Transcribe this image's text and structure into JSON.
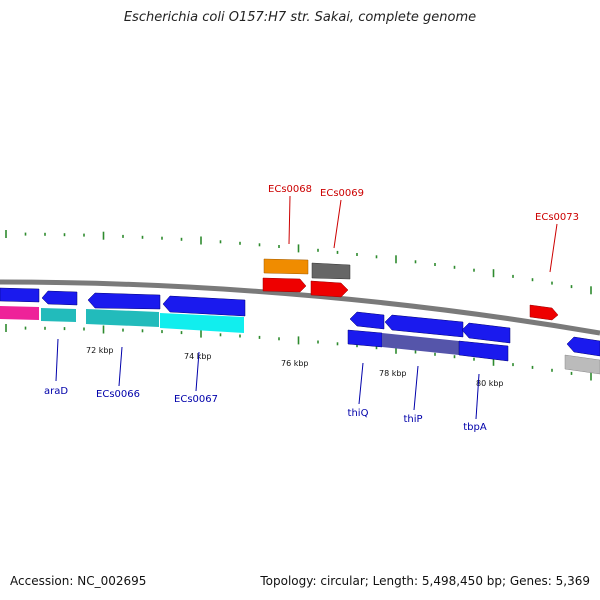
{
  "title": "Escherichia coli O157:H7 str. Sakai, complete genome",
  "footer": {
    "accession": "Accession: NC_002695",
    "summary": "Topology: circular; Length: 5,498,450 bp; Genes: 5,369"
  },
  "colors": {
    "backbone": "#7a7a7a",
    "tick": "#2e8b2e",
    "label_red": "#cc0000",
    "label_blue": "#0000aa",
    "blue": "#1a1aee",
    "red": "#ee0000",
    "orange": "#f08c00",
    "dark_gray": "#666666",
    "light_gray": "#bbbbbb",
    "teal": "#22bbbb",
    "cyan": "#11eeee",
    "magenta": "#ee2299",
    "slate": "#5555aa"
  },
  "scale_labels": [
    "72 kbp",
    "74 kbp",
    "76 kbp",
    "78 kbp",
    "80 kbp"
  ],
  "gene_labels": {
    "red": [
      "ECs0068",
      "ECs0069",
      "ECs0073"
    ],
    "blue": [
      "araD",
      "ECs0066",
      "ECs0067",
      "thiQ",
      "thiP",
      "tbpA"
    ]
  }
}
